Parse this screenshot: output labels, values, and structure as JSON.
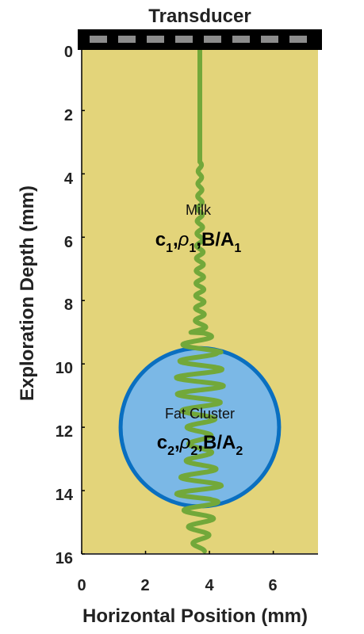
{
  "title": "Transducer",
  "xlabel": "Horizontal Position (mm)",
  "ylabel": "Exploration Depth (mm)",
  "x_ticks": [
    "0",
    "2",
    "4",
    "6"
  ],
  "y_ticks": [
    "0",
    "2",
    "4",
    "6",
    "8",
    "10",
    "12",
    "14",
    "16"
  ],
  "x_range_mm": [
    0,
    7.4
  ],
  "y_range_mm": [
    0,
    16
  ],
  "transducer_x_mm": 3.7,
  "regions": {
    "milk": {
      "name": "Milk",
      "param_c": "c",
      "sub_1": "1",
      "comma_1": ",",
      "param_rho": "ρ",
      "sub_2": "1",
      "comma_2": ",",
      "param_ba": "B/A",
      "sub_3": "1"
    },
    "fat": {
      "name": "Fat Cluster",
      "param_c": "c",
      "sub_1": "2",
      "comma_1": ",",
      "param_rho": "ρ",
      "sub_2": "2",
      "comma_2": ",",
      "param_ba": "B/A",
      "sub_3": "2"
    }
  },
  "fat_cluster": {
    "center_x_mm": 3.7,
    "center_y_mm": 12.0,
    "radius_mm": 2.5
  },
  "colors": {
    "medium": "#E3D47A",
    "fat_fill": "#7BB8E6",
    "fat_edge": "#0A6FC0",
    "wave": "#72A83A",
    "transducer": "#000000",
    "transducer_elements": "#8C8C8C"
  }
}
